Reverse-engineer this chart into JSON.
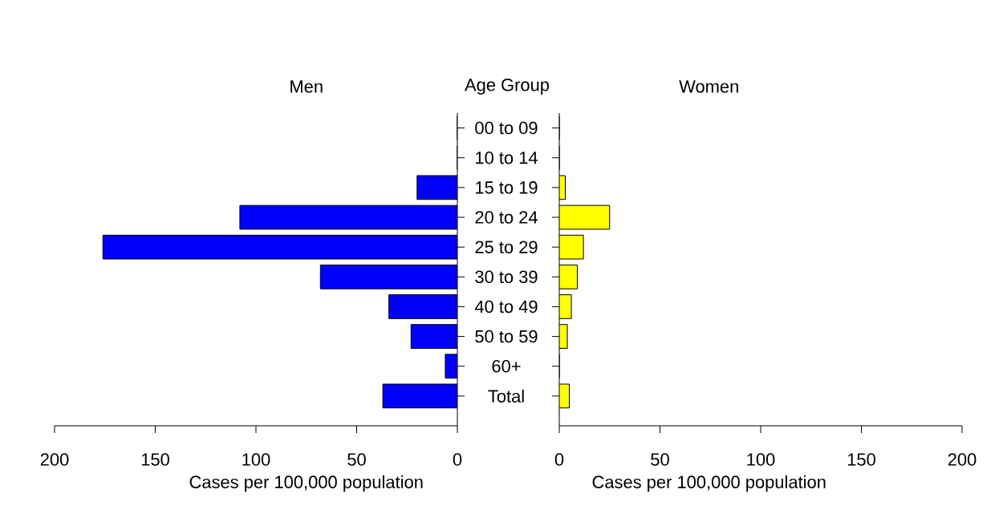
{
  "chart_data": [
    {
      "type": "bar",
      "orientation": "horizontal",
      "title": "Men",
      "ylabel": "Age Group",
      "xlabel": "Cases per 100,000 population",
      "categories": [
        "00 to 09",
        "10 to 14",
        "15 to 19",
        "20 to 24",
        "25 to 29",
        "30 to 39",
        "40 to 49",
        "50 to 59",
        "60+",
        "Total"
      ],
      "values": [
        0,
        0,
        20,
        108,
        176,
        68,
        34,
        23,
        6,
        37
      ],
      "color": "#0000ff",
      "xlim": [
        200,
        0
      ],
      "xticks": [
        0,
        50,
        100,
        150,
        200
      ]
    },
    {
      "type": "bar",
      "orientation": "horizontal",
      "title": "Women",
      "xlabel": "Cases per 100,000 population",
      "categories": [
        null,
        null,
        null,
        null,
        null,
        null,
        null,
        null,
        null,
        null
      ],
      "values": [
        0,
        0,
        3,
        25,
        12,
        9,
        6,
        4,
        0,
        5
      ],
      "color": "#ffff00",
      "xlim": [
        0,
        200
      ],
      "xticks": [
        0,
        50,
        100,
        150,
        200
      ],
      "tick_labels": "x"
    }
  ]
}
